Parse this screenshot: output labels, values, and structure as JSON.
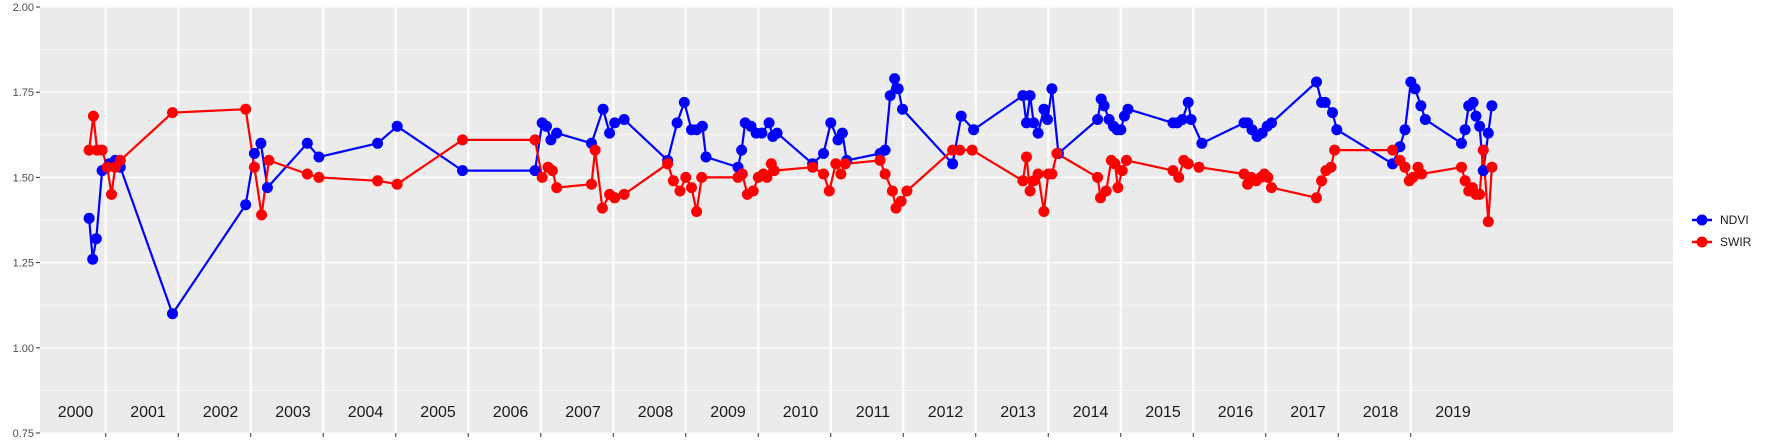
{
  "chart_data": {
    "type": "line",
    "title": "",
    "xlabel": "",
    "ylabel": "",
    "xlim": [
      2000.0,
      2020.0
    ],
    "ylim": [
      0.75,
      2.0
    ],
    "yticks": [
      "0.75",
      "1.00",
      "1.25",
      "1.50",
      "1.75",
      "2.00"
    ],
    "year_labels": [
      "2000",
      "2001",
      "2002",
      "2003",
      "2004",
      "2005",
      "2006",
      "2007",
      "2008",
      "2009",
      "2010",
      "2011",
      "2012",
      "2013",
      "2014",
      "2015",
      "2016",
      "2017",
      "2018",
      "2019"
    ],
    "grid": true,
    "legend_position": "right",
    "series": [
      {
        "name": "NDVI",
        "color": "#0000ff",
        "points": [
          [
            2000.27,
            1.38
          ],
          [
            2000.32,
            1.26
          ],
          [
            2000.37,
            1.32
          ],
          [
            2000.45,
            1.52
          ],
          [
            2000.55,
            1.54
          ],
          [
            2000.63,
            1.55
          ],
          [
            2000.7,
            1.53
          ],
          [
            2001.42,
            1.1
          ],
          [
            2002.43,
            1.42
          ],
          [
            2002.55,
            1.57
          ],
          [
            2002.64,
            1.6
          ],
          [
            2002.73,
            1.47
          ],
          [
            2003.28,
            1.6
          ],
          [
            2003.44,
            1.56
          ],
          [
            2004.25,
            1.6
          ],
          [
            2004.52,
            1.65
          ],
          [
            2005.42,
            1.52
          ],
          [
            2006.42,
            1.52
          ],
          [
            2006.52,
            1.66
          ],
          [
            2006.58,
            1.65
          ],
          [
            2006.64,
            1.61
          ],
          [
            2006.72,
            1.63
          ],
          [
            2007.2,
            1.6
          ],
          [
            2007.36,
            1.7
          ],
          [
            2007.45,
            1.63
          ],
          [
            2007.52,
            1.66
          ],
          [
            2007.65,
            1.67
          ],
          [
            2008.25,
            1.55
          ],
          [
            2008.38,
            1.66
          ],
          [
            2008.48,
            1.72
          ],
          [
            2008.58,
            1.64
          ],
          [
            2008.65,
            1.64
          ],
          [
            2008.73,
            1.65
          ],
          [
            2008.78,
            1.56
          ],
          [
            2009.22,
            1.53
          ],
          [
            2009.27,
            1.58
          ],
          [
            2009.32,
            1.66
          ],
          [
            2009.4,
            1.65
          ],
          [
            2009.47,
            1.63
          ],
          [
            2009.55,
            1.63
          ],
          [
            2009.65,
            1.66
          ],
          [
            2009.7,
            1.62
          ],
          [
            2009.76,
            1.63
          ],
          [
            2010.25,
            1.54
          ],
          [
            2010.4,
            1.57
          ],
          [
            2010.5,
            1.66
          ],
          [
            2010.6,
            1.61
          ],
          [
            2010.66,
            1.63
          ],
          [
            2010.72,
            1.55
          ],
          [
            2011.18,
            1.57
          ],
          [
            2011.25,
            1.58
          ],
          [
            2011.32,
            1.74
          ],
          [
            2011.38,
            1.79
          ],
          [
            2011.43,
            1.76
          ],
          [
            2011.49,
            1.7
          ],
          [
            2012.18,
            1.54
          ],
          [
            2012.3,
            1.68
          ],
          [
            2012.47,
            1.64
          ],
          [
            2013.15,
            1.74
          ],
          [
            2013.2,
            1.66
          ],
          [
            2013.25,
            1.74
          ],
          [
            2013.3,
            1.66
          ],
          [
            2013.36,
            1.63
          ],
          [
            2013.44,
            1.7
          ],
          [
            2013.49,
            1.67
          ],
          [
            2013.55,
            1.76
          ],
          [
            2013.64,
            1.57
          ],
          [
            2014.18,
            1.67
          ],
          [
            2014.23,
            1.73
          ],
          [
            2014.27,
            1.71
          ],
          [
            2014.34,
            1.67
          ],
          [
            2014.4,
            1.65
          ],
          [
            2014.45,
            1.64
          ],
          [
            2014.5,
            1.64
          ],
          [
            2014.55,
            1.68
          ],
          [
            2014.6,
            1.7
          ],
          [
            2015.22,
            1.66
          ],
          [
            2015.28,
            1.66
          ],
          [
            2015.35,
            1.67
          ],
          [
            2015.43,
            1.72
          ],
          [
            2015.47,
            1.67
          ],
          [
            2015.62,
            1.6
          ],
          [
            2016.2,
            1.66
          ],
          [
            2016.25,
            1.66
          ],
          [
            2016.31,
            1.64
          ],
          [
            2016.38,
            1.62
          ],
          [
            2016.45,
            1.63
          ],
          [
            2016.52,
            1.65
          ],
          [
            2016.58,
            1.66
          ],
          [
            2017.2,
            1.78
          ],
          [
            2017.27,
            1.72
          ],
          [
            2017.32,
            1.72
          ],
          [
            2017.42,
            1.69
          ],
          [
            2017.48,
            1.64
          ],
          [
            2018.25,
            1.54
          ],
          [
            2018.35,
            1.59
          ],
          [
            2018.42,
            1.64
          ],
          [
            2018.5,
            1.78
          ],
          [
            2018.56,
            1.76
          ],
          [
            2018.64,
            1.71
          ],
          [
            2018.7,
            1.67
          ],
          [
            2019.2,
            1.6
          ],
          [
            2019.25,
            1.64
          ],
          [
            2019.3,
            1.71
          ],
          [
            2019.36,
            1.72
          ],
          [
            2019.4,
            1.68
          ],
          [
            2019.45,
            1.65
          ],
          [
            2019.5,
            1.52
          ],
          [
            2019.57,
            1.63
          ],
          [
            2019.62,
            1.71
          ]
        ]
      },
      {
        "name": "SWIR",
        "color": "#ff0000",
        "points": [
          [
            2000.27,
            1.58
          ],
          [
            2000.33,
            1.68
          ],
          [
            2000.38,
            1.58
          ],
          [
            2000.45,
            1.58
          ],
          [
            2000.52,
            1.53
          ],
          [
            2000.58,
            1.45
          ],
          [
            2000.63,
            1.53
          ],
          [
            2000.7,
            1.55
          ],
          [
            2001.42,
            1.69
          ],
          [
            2002.43,
            1.7
          ],
          [
            2002.55,
            1.53
          ],
          [
            2002.65,
            1.39
          ],
          [
            2002.75,
            1.55
          ],
          [
            2003.28,
            1.51
          ],
          [
            2003.44,
            1.5
          ],
          [
            2004.25,
            1.49
          ],
          [
            2004.52,
            1.48
          ],
          [
            2005.42,
            1.61
          ],
          [
            2006.42,
            1.61
          ],
          [
            2006.52,
            1.5
          ],
          [
            2006.6,
            1.53
          ],
          [
            2006.66,
            1.52
          ],
          [
            2006.72,
            1.47
          ],
          [
            2007.2,
            1.48
          ],
          [
            2007.25,
            1.58
          ],
          [
            2007.35,
            1.41
          ],
          [
            2007.45,
            1.45
          ],
          [
            2007.52,
            1.44
          ],
          [
            2007.65,
            1.45
          ],
          [
            2008.25,
            1.54
          ],
          [
            2008.33,
            1.49
          ],
          [
            2008.42,
            1.46
          ],
          [
            2008.5,
            1.5
          ],
          [
            2008.58,
            1.47
          ],
          [
            2008.65,
            1.4
          ],
          [
            2008.72,
            1.5
          ],
          [
            2009.22,
            1.5
          ],
          [
            2009.28,
            1.51
          ],
          [
            2009.35,
            1.45
          ],
          [
            2009.43,
            1.46
          ],
          [
            2009.5,
            1.5
          ],
          [
            2009.57,
            1.51
          ],
          [
            2009.62,
            1.5
          ],
          [
            2009.68,
            1.54
          ],
          [
            2009.72,
            1.52
          ],
          [
            2010.25,
            1.53
          ],
          [
            2010.4,
            1.51
          ],
          [
            2010.48,
            1.46
          ],
          [
            2010.57,
            1.54
          ],
          [
            2010.64,
            1.51
          ],
          [
            2010.7,
            1.54
          ],
          [
            2011.18,
            1.55
          ],
          [
            2011.25,
            1.51
          ],
          [
            2011.35,
            1.46
          ],
          [
            2011.4,
            1.41
          ],
          [
            2011.47,
            1.43
          ],
          [
            2011.55,
            1.46
          ],
          [
            2012.18,
            1.58
          ],
          [
            2012.28,
            1.58
          ],
          [
            2012.45,
            1.58
          ],
          [
            2013.15,
            1.49
          ],
          [
            2013.2,
            1.56
          ],
          [
            2013.25,
            1.46
          ],
          [
            2013.3,
            1.49
          ],
          [
            2013.36,
            1.51
          ],
          [
            2013.44,
            1.4
          ],
          [
            2013.5,
            1.51
          ],
          [
            2013.55,
            1.51
          ],
          [
            2013.62,
            1.57
          ],
          [
            2014.18,
            1.5
          ],
          [
            2014.22,
            1.44
          ],
          [
            2014.3,
            1.46
          ],
          [
            2014.37,
            1.55
          ],
          [
            2014.42,
            1.54
          ],
          [
            2014.46,
            1.47
          ],
          [
            2014.52,
            1.52
          ],
          [
            2014.58,
            1.55
          ],
          [
            2015.22,
            1.52
          ],
          [
            2015.3,
            1.5
          ],
          [
            2015.37,
            1.55
          ],
          [
            2015.43,
            1.54
          ],
          [
            2015.58,
            1.53
          ],
          [
            2016.2,
            1.51
          ],
          [
            2016.25,
            1.48
          ],
          [
            2016.3,
            1.5
          ],
          [
            2016.37,
            1.49
          ],
          [
            2016.43,
            1.5
          ],
          [
            2016.48,
            1.51
          ],
          [
            2016.53,
            1.5
          ],
          [
            2016.58,
            1.47
          ],
          [
            2017.2,
            1.44
          ],
          [
            2017.27,
            1.49
          ],
          [
            2017.33,
            1.52
          ],
          [
            2017.4,
            1.53
          ],
          [
            2017.45,
            1.58
          ],
          [
            2018.25,
            1.58
          ],
          [
            2018.35,
            1.55
          ],
          [
            2018.42,
            1.53
          ],
          [
            2018.48,
            1.49
          ],
          [
            2018.53,
            1.5
          ],
          [
            2018.6,
            1.53
          ],
          [
            2018.65,
            1.51
          ],
          [
            2019.2,
            1.53
          ],
          [
            2019.25,
            1.49
          ],
          [
            2019.3,
            1.46
          ],
          [
            2019.35,
            1.47
          ],
          [
            2019.4,
            1.45
          ],
          [
            2019.45,
            1.45
          ],
          [
            2019.5,
            1.58
          ],
          [
            2019.57,
            1.37
          ],
          [
            2019.62,
            1.53
          ]
        ]
      }
    ]
  },
  "legend": {
    "items": [
      {
        "label": "NDVI",
        "color": "#0000ff"
      },
      {
        "label": "SWIR",
        "color": "#ff0000"
      }
    ]
  }
}
